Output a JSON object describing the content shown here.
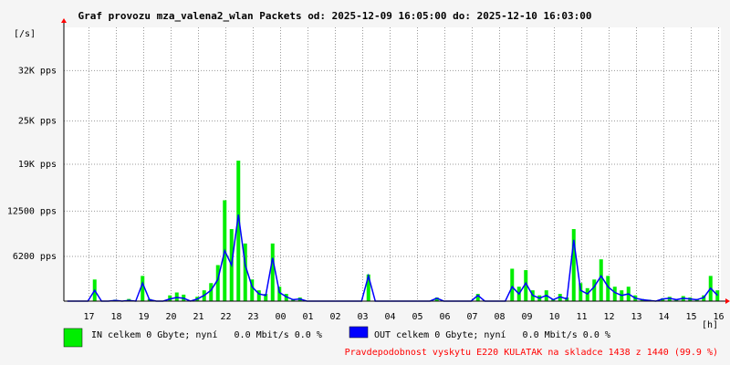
{
  "chart_data": {
    "type": "traffic",
    "title": "Graf provozu mza_valena2_wlan Packets od: 2025-12-09 16:05:00 do: 2025-12-10 16:03:00",
    "y_label": "[/s]",
    "x_label": "[h]",
    "xticks": [
      "17",
      "18",
      "19",
      "20",
      "21",
      "22",
      "23",
      "00",
      "01",
      "02",
      "03",
      "04",
      "05",
      "06",
      "07",
      "08",
      "09",
      "10",
      "11",
      "12",
      "13",
      "14",
      "15",
      "16"
    ],
    "ylim": [
      0,
      38000
    ],
    "yticks": [
      {
        "value": 6200,
        "label": "6200 pps"
      },
      {
        "value": 12500,
        "label": "12500 pps"
      },
      {
        "value": 19000,
        "label": "19K pps"
      },
      {
        "value": 25000,
        "label": "25K pps"
      },
      {
        "value": 32000,
        "label": "32K pps"
      }
    ],
    "grid": true,
    "series": [
      {
        "name": "IN celkem 0 Gbyte; nyní   0.0 Mbit/s 0.0 %",
        "color": "#00ee00",
        "values": [
          0,
          0,
          0,
          0,
          3000,
          0,
          0,
          200,
          0,
          300,
          0,
          3500,
          300,
          0,
          0,
          800,
          1200,
          900,
          0,
          600,
          1500,
          2500,
          5000,
          14000,
          10000,
          19500,
          8000,
          3000,
          1500,
          1000,
          8000,
          2000,
          1000,
          300,
          500,
          0,
          0,
          0,
          0,
          0,
          0,
          0,
          0,
          0,
          3700,
          0,
          0,
          0,
          0,
          0,
          0,
          0,
          0,
          0,
          500,
          0,
          0,
          0,
          0,
          0,
          1000,
          0,
          0,
          0,
          0,
          4500,
          2000,
          4300,
          1500,
          800,
          1500,
          300,
          1000,
          500,
          10000,
          2500,
          1800,
          3000,
          5800,
          3500,
          2000,
          1500,
          2000,
          800,
          300,
          200,
          0,
          400,
          600,
          300,
          700,
          500,
          300,
          800,
          3500,
          1500
        ]
      },
      {
        "name": "OUT celkem 0 Gbyte; nyní   0.0 Mbit/s 0.0 %",
        "color": "#0000ff",
        "values": [
          0,
          0,
          0,
          0,
          1500,
          0,
          0,
          100,
          0,
          100,
          0,
          2500,
          200,
          0,
          0,
          300,
          500,
          400,
          0,
          300,
          800,
          1500,
          3000,
          7000,
          5000,
          12000,
          5000,
          2000,
          1000,
          800,
          6000,
          1200,
          600,
          200,
          300,
          0,
          0,
          0,
          0,
          0,
          0,
          0,
          0,
          0,
          3500,
          0,
          0,
          0,
          0,
          0,
          0,
          0,
          0,
          0,
          400,
          0,
          0,
          0,
          0,
          0,
          800,
          0,
          0,
          0,
          0,
          2000,
          1000,
          2500,
          800,
          400,
          800,
          200,
          600,
          300,
          8500,
          1500,
          1000,
          2000,
          3500,
          2000,
          1200,
          800,
          1000,
          400,
          200,
          100,
          0,
          300,
          400,
          200,
          400,
          300,
          200,
          500,
          1800,
          800
        ]
      }
    ],
    "footer": "Pravdepodobnost vyskytu E220 KULATAK na skladce 1438 z 1440 (99.9 %)"
  }
}
